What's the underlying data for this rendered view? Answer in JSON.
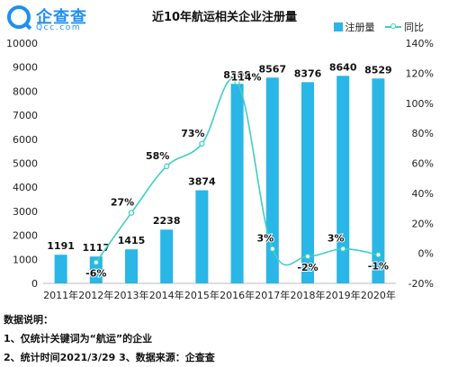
{
  "logo": {
    "name": "企查查",
    "domain": "Qcc.com"
  },
  "legend": {
    "bar_label": "注册量",
    "line_label": "同比"
  },
  "notes": {
    "heading": "数据说明：",
    "line1": "1、仅统计关键词为“航运”的企业",
    "line2": "2、统计时间2021/3/29   3、数据来源：企查查"
  },
  "colors": {
    "bar": "#2ab6e6",
    "line": "#3fcfc0",
    "brand": "#1f8ff0"
  },
  "chart_data": {
    "type": "bar",
    "title": "近10年航运相关企业注册量",
    "categories": [
      "2011年",
      "2012年",
      "2013年",
      "2014年",
      "2015年",
      "2016年",
      "2017年",
      "2018年",
      "2019年",
      "2020年"
    ],
    "series": [
      {
        "name": "注册量",
        "type": "bar",
        "axis": "left",
        "values": [
          1191,
          1117,
          1415,
          2238,
          3874,
          8308,
          8567,
          8376,
          8640,
          8529
        ],
        "labels": [
          "1191",
          "1117",
          "1415",
          "2238",
          "3874",
          "8308",
          "8567",
          "8376",
          "8640",
          "8529"
        ]
      },
      {
        "name": "同比",
        "type": "line",
        "axis": "right",
        "values": [
          null,
          -6,
          27,
          58,
          73,
          114,
          3,
          -2,
          3,
          -1
        ],
        "labels": [
          "",
          "-6%",
          "27%",
          "58%",
          "73%",
          "114%",
          "3%",
          "-2%",
          "3%",
          "-1%"
        ]
      }
    ],
    "y_left": {
      "ylim": [
        0,
        10000
      ],
      "ticks": [
        0,
        1000,
        2000,
        3000,
        4000,
        5000,
        6000,
        7000,
        8000,
        9000,
        10000
      ],
      "tick_labels": [
        "0",
        "1000",
        "2000",
        "3000",
        "4000",
        "5000",
        "6000",
        "7000",
        "8000",
        "9000",
        "10000"
      ]
    },
    "y_right": {
      "ylim": [
        -20,
        140
      ],
      "ticks": [
        -20,
        0,
        20,
        40,
        60,
        80,
        100,
        120,
        140
      ],
      "tick_labels": [
        "-20%",
        "0%",
        "20%",
        "40%",
        "60%",
        "80%",
        "100%",
        "120%",
        "140%"
      ]
    },
    "grid": false,
    "legend_position": "top-right"
  }
}
